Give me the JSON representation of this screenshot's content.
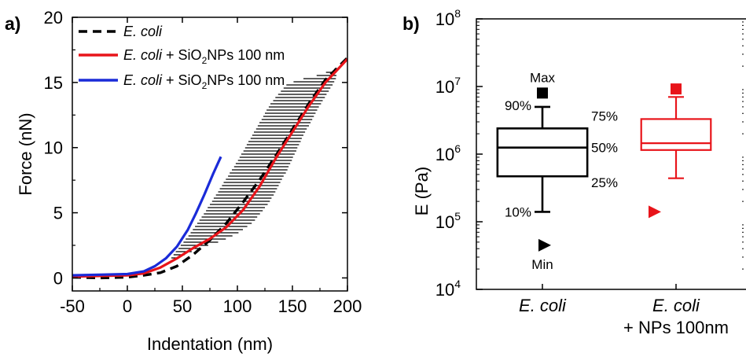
{
  "chart_data": [
    {
      "panel_label": "a)",
      "type": "line",
      "xlabel": "Indentation (nm)",
      "ylabel": "Force (nN)",
      "xlim": [
        -50,
        200
      ],
      "ylim": [
        -1,
        20
      ],
      "xticks": [
        "-50",
        "0",
        "50",
        "100",
        "150",
        "200"
      ],
      "yticks": [
        "0",
        "5",
        "10",
        "15",
        "20"
      ],
      "legend_position": "top-left",
      "series": [
        {
          "name": "E. coli",
          "legend_parts": [
            "E. coli",
            ""
          ],
          "style": "dashed",
          "color": "#000000",
          "x": [
            -50,
            -25,
            0,
            15,
            30,
            45,
            60,
            75,
            90,
            105,
            120,
            135,
            150,
            165,
            180,
            200
          ],
          "y": [
            0.05,
            0.0,
            0.05,
            0.2,
            0.4,
            0.9,
            1.8,
            2.9,
            4.2,
            5.8,
            7.5,
            9.4,
            11.4,
            13.4,
            15.2,
            16.9
          ]
        },
        {
          "name": "E. coli + SiO2NPs 100 nm",
          "legend_parts": [
            "E. coli",
            " + SiO",
            "2",
            "NPs 100 nm"
          ],
          "style": "solid",
          "color": "#e8141a",
          "x": [
            -50,
            -25,
            0,
            15,
            30,
            45,
            60,
            75,
            90,
            105,
            120,
            135,
            150,
            165,
            180,
            200
          ],
          "y": [
            0.1,
            0.15,
            0.2,
            0.35,
            0.8,
            1.5,
            2.3,
            3.0,
            3.9,
            5.2,
            7.0,
            9.2,
            11.2,
            13.2,
            15.0,
            16.8
          ]
        },
        {
          "name": "E. coli + SiO2NPs 100 nm",
          "legend_parts": [
            "E. coli",
            " + SiO",
            "2",
            "NPs 100 nm"
          ],
          "style": "solid",
          "color": "#1a2bd8",
          "x": [
            -50,
            -25,
            0,
            15,
            25,
            35,
            45,
            55,
            62,
            70,
            78,
            85
          ],
          "y": [
            0.2,
            0.25,
            0.3,
            0.5,
            0.9,
            1.5,
            2.4,
            3.7,
            4.9,
            6.4,
            8.0,
            9.3
          ]
        }
      ],
      "hatched_band": {
        "color": "#000000",
        "x": [
          40,
          55,
          70,
          85,
          100,
          115,
          130,
          145,
          160,
          175,
          190
        ],
        "upper": [
          1.6,
          3.2,
          5.0,
          7.0,
          9.0,
          11.2,
          13.4,
          14.9,
          15.3,
          15.6,
          16.1
        ],
        "lower": [
          1.2,
          1.9,
          2.4,
          2.8,
          3.4,
          4.3,
          5.9,
          8.2,
          10.9,
          13.2,
          15.3
        ]
      }
    },
    {
      "panel_label": "b)",
      "type": "box",
      "ylabel": "E (Pa)",
      "yscale": "log",
      "ylim": [
        10000,
        100000000
      ],
      "yticks": [
        {
          "base": "10",
          "exp": "4"
        },
        {
          "base": "10",
          "exp": "5"
        },
        {
          "base": "10",
          "exp": "6"
        },
        {
          "base": "10",
          "exp": "7"
        },
        {
          "base": "10",
          "exp": "8"
        }
      ],
      "categories": [
        {
          "lines": [
            "E. coli"
          ],
          "italic": [
            true
          ]
        },
        {
          "lines": [
            "E. coli",
            "+ NPs 100nm"
          ],
          "italic": [
            true,
            false
          ]
        }
      ],
      "boxes": [
        {
          "category_index": 0,
          "color": "#000000",
          "min": 45000,
          "p10": 140000,
          "p25": 470000,
          "median": 1250000,
          "p75": 2400000,
          "p90": 5000000,
          "max": 8000000
        },
        {
          "category_index": 1,
          "color": "#e8141a",
          "min": 140000,
          "p10": 440000,
          "p25": 1150000,
          "median": 1450000,
          "p75": 3300000,
          "p90": 7000000,
          "max": 9200000
        }
      ],
      "annotations": {
        "max": "Max",
        "p90": "90%",
        "p75": "75%",
        "median": "50%",
        "p25": "25%",
        "p10": "10%",
        "min": "Min"
      }
    }
  ]
}
